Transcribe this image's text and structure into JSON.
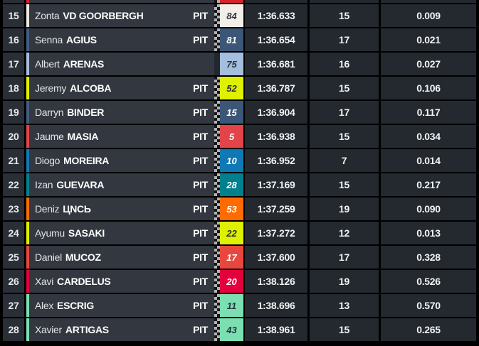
{
  "app": {
    "name": "live-timing-tower",
    "background": "#000000"
  },
  "colors": {
    "pos_cell_bg": "#2a2e36",
    "name_cell_bg": "#33373f",
    "data_cell_bg": "#24282f",
    "text_light": "#f2f2f2",
    "pit_text": "#ffffff"
  },
  "partial_top_row": {
    "accent": "#d8232b",
    "num_bg": "#d8232b",
    "pit": true
  },
  "table": {
    "pit_label": "PIT",
    "columns": [
      "position",
      "rider",
      "pit",
      "number",
      "lap_time",
      "laps",
      "gap"
    ],
    "rows": [
      {
        "pos": "15",
        "first": "Zonta",
        "last": "VD GOORBERGH",
        "pit": true,
        "num": "84",
        "num_bg": "#f2efe9",
        "num_fg": "#32373f",
        "accent": "#ece9e3",
        "time": "1:36.633",
        "laps": "15",
        "gap": "0.009"
      },
      {
        "pos": "16",
        "first": "Senna",
        "last": "AGIUS",
        "pit": true,
        "num": "81",
        "num_bg": "#3c5678",
        "num_fg": "#ffffff",
        "accent": "#415d80",
        "time": "1:36.654",
        "laps": "17",
        "gap": "0.021"
      },
      {
        "pos": "17",
        "first": "Albert",
        "last": "ARENAS",
        "pit": false,
        "num": "75",
        "num_bg": "#a4bedf",
        "num_fg": "#2b3139",
        "accent": "#a4bedf",
        "time": "1:36.681",
        "laps": "16",
        "gap": "0.027"
      },
      {
        "pos": "18",
        "first": "Jeremy",
        "last": "ALCOBA",
        "pit": true,
        "num": "52",
        "num_bg": "#dff000",
        "num_fg": "#2e3238",
        "accent": "#dff000",
        "time": "1:36.787",
        "laps": "15",
        "gap": "0.106"
      },
      {
        "pos": "19",
        "first": "Darryn",
        "last": "BINDER",
        "pit": true,
        "num": "15",
        "num_bg": "#3c5678",
        "num_fg": "#ffffff",
        "accent": "#415d80",
        "time": "1:36.904",
        "laps": "17",
        "gap": "0.117"
      },
      {
        "pos": "20",
        "first": "Jaume",
        "last": "MASIA",
        "pit": true,
        "num": "5",
        "num_bg": "#e2444a",
        "num_fg": "#ffffff",
        "accent": "#e2444a",
        "time": "1:36.938",
        "laps": "15",
        "gap": "0.034"
      },
      {
        "pos": "21",
        "first": "Diogo",
        "last": "MOREIRA",
        "pit": true,
        "num": "10",
        "num_bg": "#0e79b5",
        "num_fg": "#ffffff",
        "accent": "#0e79b5",
        "time": "1:36.952",
        "laps": "7",
        "gap": "0.014"
      },
      {
        "pos": "22",
        "first": "Izan",
        "last": "GUEVARA",
        "pit": true,
        "num": "28",
        "num_bg": "#00808d",
        "num_fg": "#ffffff",
        "accent": "#00808d",
        "time": "1:37.169",
        "laps": "15",
        "gap": "0.217"
      },
      {
        "pos": "23",
        "first": "Deniz",
        "last": "ЦNCЬ",
        "pit": true,
        "num": "53",
        "num_bg": "#ff6b00",
        "num_fg": "#ffffff",
        "accent": "#ff6b00",
        "time": "1:37.259",
        "laps": "19",
        "gap": "0.090"
      },
      {
        "pos": "24",
        "first": "Ayumu",
        "last": "SASAKI",
        "pit": true,
        "num": "22",
        "num_bg": "#dff000",
        "num_fg": "#2e3238",
        "accent": "#dff000",
        "time": "1:37.272",
        "laps": "12",
        "gap": "0.013"
      },
      {
        "pos": "25",
        "first": "Daniel",
        "last": "MUCOZ",
        "pit": true,
        "num": "17",
        "num_bg": "#e8473f",
        "num_fg": "#ffffff",
        "accent": "#e8473f",
        "time": "1:37.600",
        "laps": "17",
        "gap": "0.328"
      },
      {
        "pos": "26",
        "first": "Xavi",
        "last": "CARDELUS",
        "pit": true,
        "num": "20",
        "num_bg": "#e2003d",
        "num_fg": "#ffffff",
        "accent": "#e2003d",
        "time": "1:38.126",
        "laps": "19",
        "gap": "0.526"
      },
      {
        "pos": "27",
        "first": "Alex",
        "last": "ESCRIG",
        "pit": true,
        "num": "11",
        "num_bg": "#7cdfb2",
        "num_fg": "#24353f",
        "accent": "#7cdfb2",
        "time": "1:38.696",
        "laps": "13",
        "gap": "0.570"
      },
      {
        "pos": "28",
        "first": "Xavier",
        "last": "ARTIGAS",
        "pit": true,
        "num": "43",
        "num_bg": "#7cdfb2",
        "num_fg": "#24353f",
        "accent": "#7cdfb2",
        "time": "1:38.961",
        "laps": "15",
        "gap": "0.265"
      }
    ]
  }
}
